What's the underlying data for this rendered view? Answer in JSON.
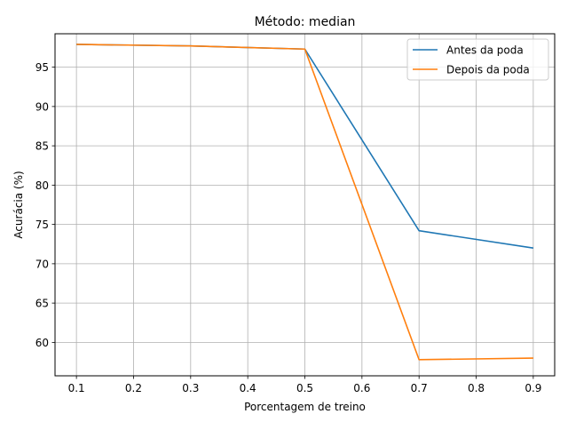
{
  "chart_data": {
    "type": "line",
    "title": "Método: median",
    "xlabel": "Porcentagem de treino",
    "ylabel": "Acurácia (%)",
    "x": [
      0.1,
      0.3,
      0.5,
      0.7,
      0.9
    ],
    "xlim": [
      0.0625,
      0.9375
    ],
    "ylim": [
      55.75,
      99.25
    ],
    "xticks": [
      0.1,
      0.2,
      0.3,
      0.4,
      0.5,
      0.6,
      0.7,
      0.8,
      0.9
    ],
    "xtick_labels": [
      "0.1",
      "0.2",
      "0.3",
      "0.4",
      "0.5",
      "0.6",
      "0.7",
      "0.8",
      "0.9"
    ],
    "yticks": [
      60,
      65,
      70,
      75,
      80,
      85,
      90,
      95
    ],
    "ytick_labels": [
      "60",
      "65",
      "70",
      "75",
      "80",
      "85",
      "90",
      "95"
    ],
    "grid": true,
    "legend_position": "top-right",
    "series": [
      {
        "name": "Antes da poda",
        "color": "#1f77b4",
        "values": [
          97.9,
          97.7,
          97.3,
          74.2,
          72.0
        ]
      },
      {
        "name": "Depois da poda",
        "color": "#ff7f0e",
        "values": [
          97.9,
          97.7,
          97.3,
          57.8,
          58.0
        ]
      }
    ]
  }
}
